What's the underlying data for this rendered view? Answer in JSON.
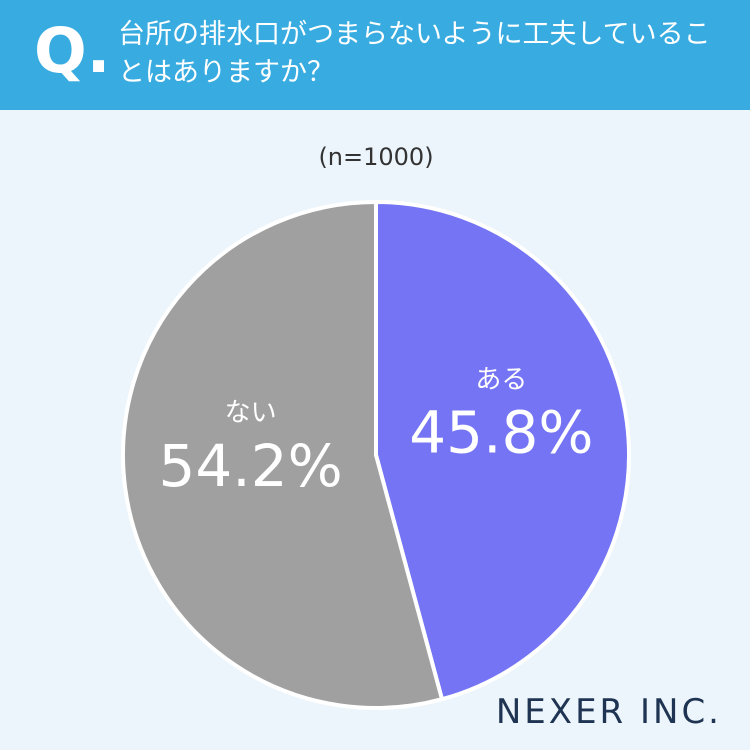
{
  "header": {
    "mark": "Q.",
    "question": "台所の排水口がつまらないように工夫していることはありますか？"
  },
  "chart_data": {
    "type": "pie",
    "subtitle": "(n=1000)",
    "categories": [
      "ある",
      "ない"
    ],
    "values": [
      45.8,
      54.2
    ],
    "value_labels": [
      "45.8%",
      "54.2%"
    ],
    "colors": [
      "#7474f4",
      "#a0a0a0"
    ]
  },
  "footer": {
    "brand": "NEXER INC."
  }
}
